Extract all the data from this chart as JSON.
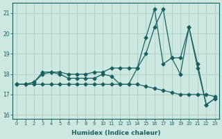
{
  "xlabel": "Humidex (Indice chaleur)",
  "xlim": [
    -0.5,
    23.5
  ],
  "ylim": [
    15.8,
    21.5
  ],
  "yticks": [
    16,
    17,
    18,
    19,
    20,
    21
  ],
  "xticks": [
    0,
    1,
    2,
    3,
    4,
    5,
    6,
    7,
    8,
    9,
    10,
    11,
    12,
    13,
    14,
    15,
    16,
    17,
    18,
    19,
    20,
    21,
    22,
    23
  ],
  "background_color": "#cce8e0",
  "grid_color": "#aacfc8",
  "line_color": "#1a6060",
  "line1_y": [
    17.5,
    17.5,
    17.5,
    17.5,
    17.5,
    17.5,
    17.5,
    17.5,
    17.5,
    17.5,
    17.5,
    17.5,
    17.5,
    17.5,
    17.5,
    17.4,
    17.3,
    17.2,
    17.1,
    17.0,
    17.0,
    17.0,
    17.0,
    16.9
  ],
  "line2_y": [
    17.5,
    17.5,
    17.6,
    18.0,
    18.1,
    18.0,
    17.8,
    17.8,
    17.8,
    17.8,
    18.0,
    17.9,
    17.5,
    17.5,
    18.3,
    19.8,
    21.2,
    18.5,
    18.8,
    18.0,
    20.3,
    18.3,
    16.5,
    16.8
  ],
  "line3_y": [
    17.5,
    17.5,
    17.6,
    18.1,
    18.1,
    18.1,
    18.0,
    18.0,
    18.0,
    18.1,
    18.1,
    18.3,
    18.3,
    18.3,
    18.3,
    19.0,
    20.3,
    21.2,
    18.8,
    18.8,
    20.3,
    18.5,
    16.5,
    16.8
  ]
}
